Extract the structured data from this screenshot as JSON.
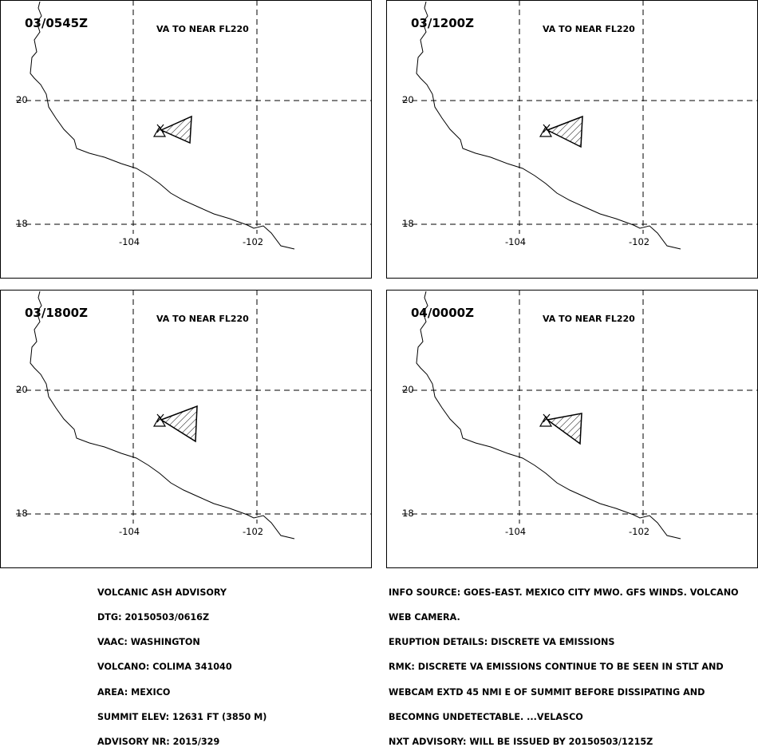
{
  "panels": [
    {
      "time": "03/0545Z",
      "label": "VA TO NEAR FL220"
    },
    {
      "time": "03/1200Z",
      "label": "VA TO NEAR FL220"
    },
    {
      "time": "03/1800Z",
      "label": "VA TO NEAR FL220"
    },
    {
      "time": "04/0000Z",
      "label": "VA TO NEAR FL220"
    }
  ],
  "axes": {
    "lat_labels": [
      "20",
      "18"
    ],
    "lon_labels": [
      "-104",
      "-102"
    ]
  },
  "advisory_left": {
    "lines": [
      "VOLCANIC ASH ADVISORY",
      "DTG: 20150503/0616Z",
      "VAAC: WASHINGTON",
      "VOLCANO: COLIMA 341040",
      "AREA: MEXICO",
      "SUMMIT ELEV: 12631 FT (3850 M)",
      "ADVISORY NR: 2015/329"
    ]
  },
  "advisory_right": {
    "lines": [
      "INFO SOURCE: GOES-EAST. MEXICO CITY MWO. GFS WINDS. VOLCANO",
      "WEB CAMERA.",
      "ERUPTION DETAILS: DISCRETE VA EMISSIONS",
      "RMK: DISCRETE VA EMISSIONS CONTINUE TO BE SEEN IN STLT AND",
      "WEBCAM EXTD 45 NMI E OF SUMMIT BEFORE DISSIPATING AND",
      "BECOMNG UNDETECTABLE. ...VELASCO",
      "NXT ADVISORY: WILL BE ISSUED BY 20150503/1215Z"
    ]
  },
  "colors": {
    "line": "#000000",
    "background": "#ffffff"
  }
}
